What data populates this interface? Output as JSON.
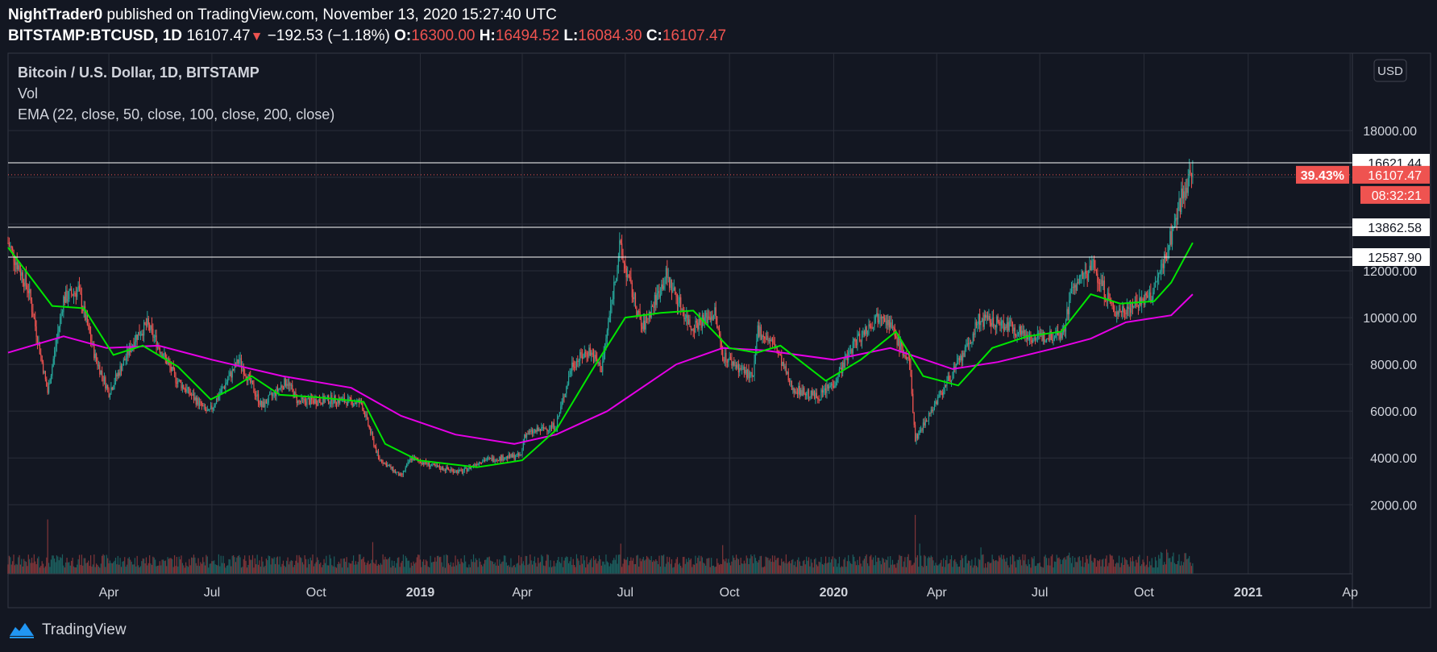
{
  "header": {
    "author": "NightTrader0",
    "published": "published on TradingView.com, November 13, 2020 15:27:40 UTC",
    "symbol": "BITSTAMP:BTCUSD, 1D",
    "last": "16107.47",
    "change": "−192.53 (−1.18%)",
    "o_label": "O:",
    "o": "16300.00",
    "h_label": "H:",
    "h": "16494.52",
    "l_label": "L:",
    "l": "16084.30",
    "c_label": "C:",
    "c": "16107.47"
  },
  "legend": {
    "title": "Bitcoin / U.S. Dollar, 1D, BITSTAMP",
    "vol": "Vol",
    "ema": "EMA (22, close, 50, close, 100, close, 200, close)"
  },
  "currency_button": "USD",
  "footer": {
    "brand": "TradingView"
  },
  "colors": {
    "background": "#131722",
    "grid": "#2a2e39",
    "text": "#d1d4dc",
    "up": "#26a69a",
    "down": "#ef5350",
    "ema_fast": "#00e600",
    "ema_slow": "#e600e6",
    "hline": "#ffffff",
    "price_tag": "#ef5350"
  },
  "chart_data": {
    "type": "candlestick",
    "symbol": "BITSTAMP:BTCUSD",
    "interval": "1D",
    "y_ticks": [
      2000,
      4000,
      6000,
      8000,
      10000,
      12000,
      14000,
      16000,
      18000
    ],
    "y_tick_labels": [
      "2000.00",
      "4000.00",
      "6000.00",
      "8000.00",
      "10000.00",
      "12000.00",
      "",
      "",
      "18000.00"
    ],
    "x_ticks": [
      {
        "label": "Apr",
        "t": "2018-04-01",
        "bold": false
      },
      {
        "label": "Jul",
        "t": "2018-07-01",
        "bold": false
      },
      {
        "label": "Oct",
        "t": "2018-10-01",
        "bold": false
      },
      {
        "label": "2019",
        "t": "2019-01-01",
        "bold": true
      },
      {
        "label": "Apr",
        "t": "2019-04-01",
        "bold": false
      },
      {
        "label": "Jul",
        "t": "2019-07-01",
        "bold": false
      },
      {
        "label": "Oct",
        "t": "2019-10-01",
        "bold": false
      },
      {
        "label": "2020",
        "t": "2020-01-01",
        "bold": true
      },
      {
        "label": "Apr",
        "t": "2020-04-01",
        "bold": false
      },
      {
        "label": "Jul",
        "t": "2020-07-01",
        "bold": false
      },
      {
        "label": "Oct",
        "t": "2020-10-01",
        "bold": false
      },
      {
        "label": "2021",
        "t": "2021-01-01",
        "bold": true
      },
      {
        "label": "Ap",
        "t": "2021-04-01",
        "bold": false
      }
    ],
    "x_range": [
      "2018-01-02",
      "2021-04-03"
    ],
    "horizontal_lines": [
      16621.44,
      13862.58,
      12587.9
    ],
    "current_price": 16107.47,
    "current_change_tag": "39.43%",
    "countdown": "08:32:21",
    "price_path": [
      [
        "2018-01-02",
        13200
      ],
      [
        "2018-01-20",
        11200
      ],
      [
        "2018-02-06",
        6800
      ],
      [
        "2018-02-20",
        10800
      ],
      [
        "2018-03-05",
        11200
      ],
      [
        "2018-03-20",
        8300
      ],
      [
        "2018-04-01",
        6800
      ],
      [
        "2018-04-25",
        9200
      ],
      [
        "2018-05-05",
        9700
      ],
      [
        "2018-05-30",
        7400
      ],
      [
        "2018-06-28",
        5900
      ],
      [
        "2018-07-25",
        8200
      ],
      [
        "2018-08-14",
        6200
      ],
      [
        "2018-09-05",
        7300
      ],
      [
        "2018-09-15",
        6400
      ],
      [
        "2018-10-15",
        6500
      ],
      [
        "2018-11-10",
        6350
      ],
      [
        "2018-11-25",
        4000
      ],
      [
        "2018-12-15",
        3200
      ],
      [
        "2018-12-24",
        4000
      ],
      [
        "2019-01-15",
        3600
      ],
      [
        "2019-02-07",
        3400
      ],
      [
        "2019-02-24",
        3900
      ],
      [
        "2019-03-31",
        4100
      ],
      [
        "2019-04-03",
        5000
      ],
      [
        "2019-05-01",
        5400
      ],
      [
        "2019-05-15",
        8000
      ],
      [
        "2019-05-30",
        8600
      ],
      [
        "2019-06-10",
        7800
      ],
      [
        "2019-06-26",
        13000
      ],
      [
        "2019-07-16",
        9500
      ],
      [
        "2019-08-06",
        11800
      ],
      [
        "2019-08-28",
        9600
      ],
      [
        "2019-09-18",
        10200
      ],
      [
        "2019-09-25",
        8400
      ],
      [
        "2019-10-22",
        7400
      ],
      [
        "2019-10-26",
        9500
      ],
      [
        "2019-11-10",
        8800
      ],
      [
        "2019-11-25",
        7000
      ],
      [
        "2019-12-18",
        6600
      ],
      [
        "2020-01-01",
        7200
      ],
      [
        "2020-01-19",
        8900
      ],
      [
        "2020-02-13",
        10300
      ],
      [
        "2020-03-08",
        8000
      ],
      [
        "2020-03-13",
        4800
      ],
      [
        "2020-04-05",
        6800
      ],
      [
        "2020-04-29",
        8800
      ],
      [
        "2020-05-08",
        9900
      ],
      [
        "2020-06-01",
        9700
      ],
      [
        "2020-06-27",
        9100
      ],
      [
        "2020-07-22",
        9400
      ],
      [
        "2020-07-29",
        11200
      ],
      [
        "2020-08-17",
        12200
      ],
      [
        "2020-09-05",
        10200
      ],
      [
        "2020-10-08",
        10900
      ],
      [
        "2020-10-21",
        12800
      ],
      [
        "2020-11-05",
        15500
      ],
      [
        "2020-11-13",
        16107
      ]
    ],
    "ema_green": [
      [
        "2018-01-02",
        13000
      ],
      [
        "2018-02-10",
        10500
      ],
      [
        "2018-03-10",
        10400
      ],
      [
        "2018-04-05",
        8400
      ],
      [
        "2018-05-01",
        8800
      ],
      [
        "2018-06-01",
        7900
      ],
      [
        "2018-06-30",
        6500
      ],
      [
        "2018-07-20",
        7000
      ],
      [
        "2018-08-05",
        7500
      ],
      [
        "2018-08-30",
        6700
      ],
      [
        "2018-10-01",
        6600
      ],
      [
        "2018-11-12",
        6400
      ],
      [
        "2018-12-01",
        4600
      ],
      [
        "2018-12-30",
        3900
      ],
      [
        "2019-02-20",
        3600
      ],
      [
        "2019-04-01",
        3900
      ],
      [
        "2019-05-01",
        5200
      ],
      [
        "2019-06-01",
        7700
      ],
      [
        "2019-07-01",
        10000
      ],
      [
        "2019-08-01",
        10200
      ],
      [
        "2019-08-30",
        10300
      ],
      [
        "2019-10-01",
        8700
      ],
      [
        "2019-10-25",
        8500
      ],
      [
        "2019-11-15",
        8800
      ],
      [
        "2019-12-25",
        7300
      ],
      [
        "2020-01-25",
        8200
      ],
      [
        "2020-02-25",
        9400
      ],
      [
        "2020-03-20",
        7500
      ],
      [
        "2020-04-20",
        7100
      ],
      [
        "2020-05-20",
        8700
      ],
      [
        "2020-06-20",
        9200
      ],
      [
        "2020-07-20",
        9400
      ],
      [
        "2020-08-15",
        11000
      ],
      [
        "2020-09-10",
        10600
      ],
      [
        "2020-10-10",
        10700
      ],
      [
        "2020-10-25",
        11500
      ],
      [
        "2020-11-13",
        13200
      ]
    ],
    "ema_magenta": [
      [
        "2018-01-02",
        8500
      ],
      [
        "2018-02-20",
        9200
      ],
      [
        "2018-03-30",
        8700
      ],
      [
        "2018-05-15",
        8800
      ],
      [
        "2018-07-01",
        8200
      ],
      [
        "2018-09-01",
        7500
      ],
      [
        "2018-11-01",
        7000
      ],
      [
        "2018-12-15",
        5800
      ],
      [
        "2019-02-01",
        5000
      ],
      [
        "2019-03-25",
        4600
      ],
      [
        "2019-05-01",
        5000
      ],
      [
        "2019-06-15",
        6000
      ],
      [
        "2019-08-15",
        8000
      ],
      [
        "2019-09-25",
        8700
      ],
      [
        "2019-11-01",
        8600
      ],
      [
        "2020-01-01",
        8200
      ],
      [
        "2020-02-20",
        8700
      ],
      [
        "2020-04-15",
        7800
      ],
      [
        "2020-05-25",
        8100
      ],
      [
        "2020-07-15",
        8700
      ],
      [
        "2020-08-15",
        9100
      ],
      [
        "2020-09-15",
        9800
      ],
      [
        "2020-10-25",
        10100
      ],
      [
        "2020-11-13",
        11000
      ]
    ],
    "volume_spikes": [
      [
        "2018-02-06",
        3600
      ],
      [
        "2018-11-20",
        2100
      ],
      [
        "2019-06-27",
        2000
      ],
      [
        "2019-09-25",
        1900
      ],
      [
        "2020-03-13",
        3900
      ],
      [
        "2020-03-17",
        2000
      ],
      [
        "2020-05-10",
        1750
      ],
      [
        "2020-07-27",
        1400
      ],
      [
        "2020-09-03",
        1200
      ],
      [
        "2020-10-21",
        1350
      ]
    ]
  }
}
